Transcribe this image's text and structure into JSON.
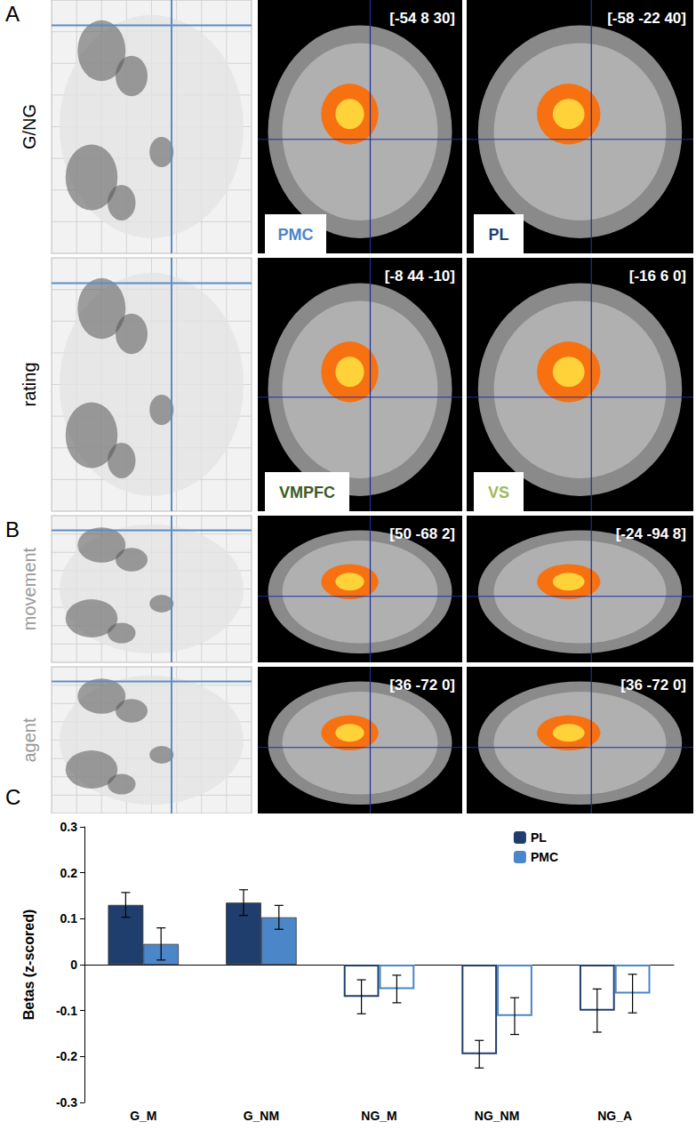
{
  "panel_a": {
    "label": "A",
    "rows": [
      {
        "name": "G/NG",
        "images": [
          {
            "coords": "[-54 8 30]",
            "region": "PMC",
            "region_color": "#4a86c8"
          },
          {
            "coords": "[-58 -22 40]",
            "region": "PL",
            "region_color": "#1f3e6e"
          }
        ]
      },
      {
        "name": "rating",
        "images": [
          {
            "coords": "[-8 44 -10]",
            "region": "VMPFC",
            "region_color": "#3d5a1f"
          },
          {
            "coords": "[-16 6 0]",
            "region": "VS",
            "region_color": "#9bbb59"
          }
        ]
      }
    ]
  },
  "panel_b": {
    "label": "B",
    "rows": [
      {
        "name": "movement",
        "images": [
          {
            "coords": "[50 -68 2]"
          },
          {
            "coords": "[-24 -94 8]"
          }
        ]
      },
      {
        "name": "agent",
        "images": [
          {
            "coords": "[36 -72 0]"
          },
          {
            "coords": "[36 -72 0]"
          }
        ]
      }
    ]
  },
  "chart_data": {
    "label": "C",
    "type": "bar",
    "y_label": "Betas (z-scored)",
    "categories": [
      "G_M",
      "G_NM",
      "NG_M",
      "NG_NM",
      "NG_A"
    ],
    "series": [
      {
        "name": "PL",
        "color": "#1f3e6e",
        "values": [
          0.13,
          0.135,
          -0.07,
          -0.195,
          -0.1
        ],
        "errors": [
          0.027,
          0.028,
          0.037,
          0.03,
          0.047
        ]
      },
      {
        "name": "PMC",
        "color": "#4a86c8",
        "values": [
          0.045,
          0.103,
          -0.053,
          -0.112,
          -0.063
        ],
        "errors": [
          0.035,
          0.026,
          0.03,
          0.04,
          0.042
        ]
      }
    ],
    "ylim": [
      -0.3,
      0.3
    ],
    "yticks": [
      -0.3,
      -0.2,
      -0.1,
      0,
      0.1,
      0.2,
      0.3
    ],
    "legend": "top-right",
    "grid": false
  }
}
